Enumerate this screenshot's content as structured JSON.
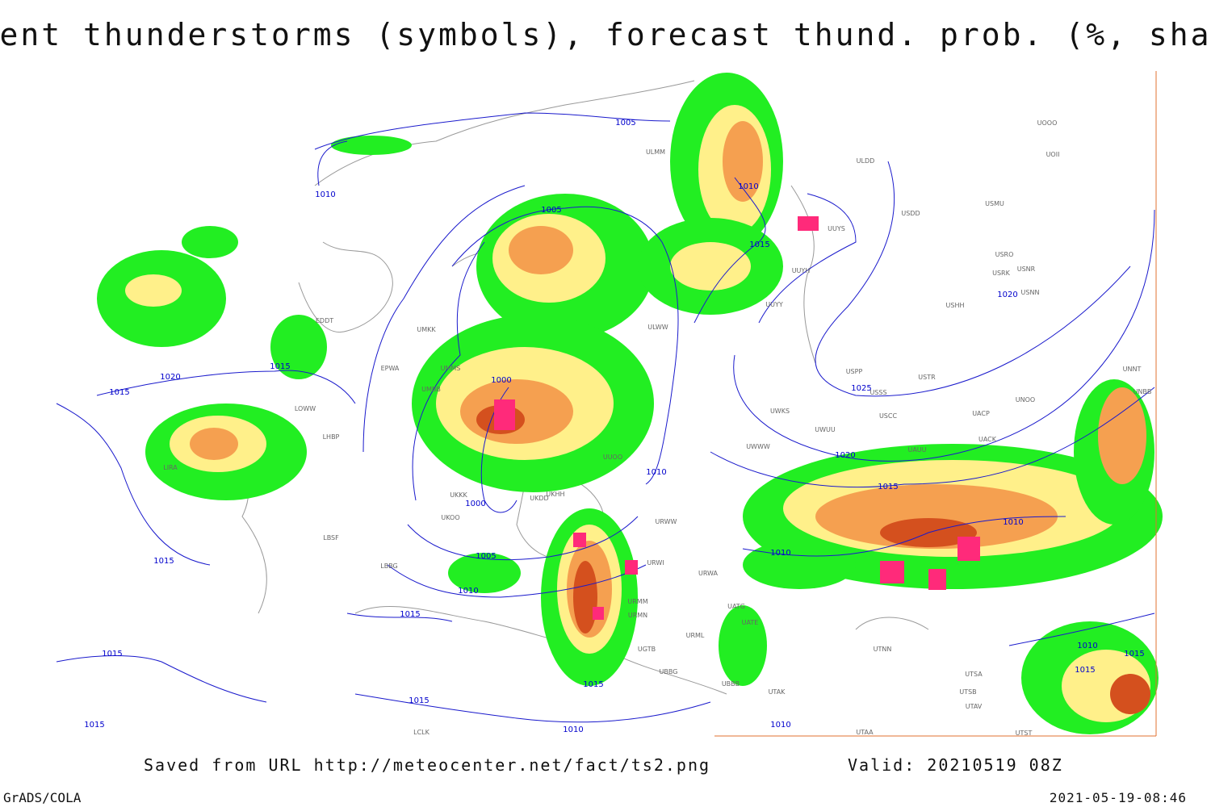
{
  "title": "Current thunderstorms (symbols), forecast thund. prob. (%, shaded)",
  "footer": {
    "source": "Saved from URL http://meteocenter.net/fact/ts2.png",
    "valid": "Valid: 20210519 08Z",
    "software": "GrADS/COLA",
    "timestamp": "2021-05-19-08:46"
  },
  "isobar_labels": [
    "1005",
    "1010",
    "1010",
    "1005",
    "1015",
    "1020",
    "1015",
    "1020",
    "1015",
    "1000",
    "1025",
    "1020",
    "1010",
    "1015",
    "1000",
    "1010",
    "1005",
    "1010",
    "1015",
    "1010",
    "1015",
    "1015",
    "1010",
    "1015",
    "1015",
    "1015",
    "1015",
    "1015",
    "1010",
    "1010"
  ],
  "station_codes": [
    "ULMM",
    "ULDD",
    "USDD",
    "USMU",
    "UUYS",
    "USRO",
    "USRK",
    "USNR",
    "UUYH",
    "USNN",
    "USHH",
    "UUYY",
    "UOOO",
    "UOII",
    "EDDT",
    "UMKK",
    "ULWW",
    "UMMS",
    "EPWA",
    "UMBB",
    "USPP",
    "USTR",
    "USSS",
    "UNNT",
    "UNBB",
    "UNOO",
    "UWKS",
    "UWUU",
    "UACP",
    "USCC",
    "UAUU",
    "UACK",
    "LOWW",
    "LHBP",
    "LIRA",
    "UUOO",
    "UKKK",
    "UKDD",
    "UKHH",
    "UKOO",
    "UWWW",
    "URWW",
    "LBSF",
    "LBBG",
    "URWI",
    "URWA",
    "UATG",
    "UATE",
    "URML",
    "URMN",
    "URMM",
    "UTNN",
    "UTAK",
    "UTSA",
    "UTSB",
    "UTAV",
    "UTAA",
    "UBBB",
    "UGTB",
    "UBBG",
    "LCLK",
    "UTST"
  ]
}
